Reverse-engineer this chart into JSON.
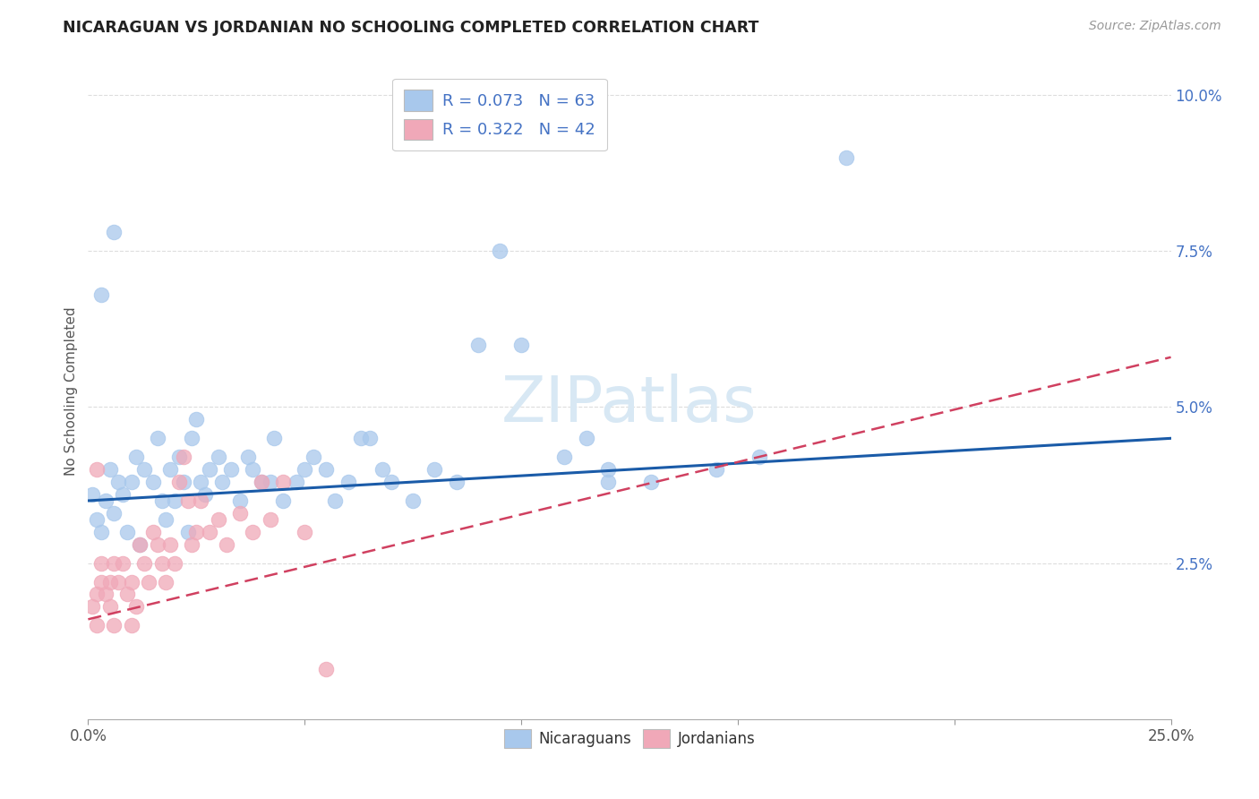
{
  "title": "NICARAGUAN VS JORDANIAN NO SCHOOLING COMPLETED CORRELATION CHART",
  "source_text": "Source: ZipAtlas.com",
  "ylabel": "No Schooling Completed",
  "xlim": [
    0.0,
    0.25
  ],
  "ylim": [
    0.0,
    0.105
  ],
  "xticks": [
    0.0,
    0.05,
    0.1,
    0.15,
    0.2,
    0.25
  ],
  "xticklabels": [
    "0.0%",
    "",
    "",
    "",
    "",
    "25.0%"
  ],
  "yticks": [
    0.0,
    0.025,
    0.05,
    0.075,
    0.1
  ],
  "left_yticklabels": [
    "",
    "",
    "",
    "",
    ""
  ],
  "right_yticklabels": [
    "",
    "2.5%",
    "5.0%",
    "7.5%",
    "10.0%"
  ],
  "nicaraguan_R": 0.073,
  "nicaraguan_N": 63,
  "jordanian_R": 0.322,
  "jordanian_N": 42,
  "blue_color": "#A8C8EC",
  "pink_color": "#F0A8B8",
  "blue_line_color": "#1A5BA8",
  "pink_line_color": "#D04060",
  "pink_line_dash": [
    6,
    3
  ],
  "legend_color": "#4472C4",
  "watermark_text": "ZIPatlas",
  "watermark_color": "#D8E8F4",
  "legend_label_1": "R = 0.073   N = 63",
  "legend_label_2": "R = 0.322   N = 42",
  "bottom_legend_1": "Nicaraguans",
  "bottom_legend_2": "Jordanians",
  "background_color": "#FFFFFF",
  "grid_color": "#DDDDDD",
  "nic_x": [
    0.001,
    0.002,
    0.003,
    0.004,
    0.005,
    0.006,
    0.007,
    0.008,
    0.009,
    0.01,
    0.011,
    0.012,
    0.013,
    0.015,
    0.016,
    0.017,
    0.018,
    0.019,
    0.02,
    0.021,
    0.022,
    0.023,
    0.024,
    0.025,
    0.026,
    0.027,
    0.028,
    0.03,
    0.031,
    0.033,
    0.035,
    0.037,
    0.038,
    0.04,
    0.042,
    0.043,
    0.045,
    0.048,
    0.05,
    0.052,
    0.055,
    0.057,
    0.06,
    0.063,
    0.065,
    0.068,
    0.07,
    0.075,
    0.08,
    0.085,
    0.09,
    0.095,
    0.1,
    0.11,
    0.115,
    0.12,
    0.13,
    0.145,
    0.155,
    0.175,
    0.003,
    0.006,
    0.12
  ],
  "nic_y": [
    0.036,
    0.032,
    0.03,
    0.035,
    0.04,
    0.033,
    0.038,
    0.036,
    0.03,
    0.038,
    0.042,
    0.028,
    0.04,
    0.038,
    0.045,
    0.035,
    0.032,
    0.04,
    0.035,
    0.042,
    0.038,
    0.03,
    0.045,
    0.048,
    0.038,
    0.036,
    0.04,
    0.042,
    0.038,
    0.04,
    0.035,
    0.042,
    0.04,
    0.038,
    0.038,
    0.045,
    0.035,
    0.038,
    0.04,
    0.042,
    0.04,
    0.035,
    0.038,
    0.045,
    0.045,
    0.04,
    0.038,
    0.035,
    0.04,
    0.038,
    0.06,
    0.075,
    0.06,
    0.042,
    0.045,
    0.04,
    0.038,
    0.04,
    0.042,
    0.09,
    0.068,
    0.078,
    0.038
  ],
  "jor_x": [
    0.001,
    0.002,
    0.002,
    0.003,
    0.003,
    0.004,
    0.005,
    0.005,
    0.006,
    0.006,
    0.007,
    0.008,
    0.009,
    0.01,
    0.01,
    0.011,
    0.012,
    0.013,
    0.014,
    0.015,
    0.016,
    0.017,
    0.018,
    0.019,
    0.02,
    0.021,
    0.022,
    0.023,
    0.024,
    0.025,
    0.026,
    0.028,
    0.03,
    0.032,
    0.035,
    0.038,
    0.04,
    0.042,
    0.045,
    0.05,
    0.002,
    0.055
  ],
  "jor_y": [
    0.018,
    0.015,
    0.02,
    0.022,
    0.025,
    0.02,
    0.018,
    0.022,
    0.025,
    0.015,
    0.022,
    0.025,
    0.02,
    0.022,
    0.015,
    0.018,
    0.028,
    0.025,
    0.022,
    0.03,
    0.028,
    0.025,
    0.022,
    0.028,
    0.025,
    0.038,
    0.042,
    0.035,
    0.028,
    0.03,
    0.035,
    0.03,
    0.032,
    0.028,
    0.033,
    0.03,
    0.038,
    0.032,
    0.038,
    0.03,
    0.04,
    0.008
  ]
}
